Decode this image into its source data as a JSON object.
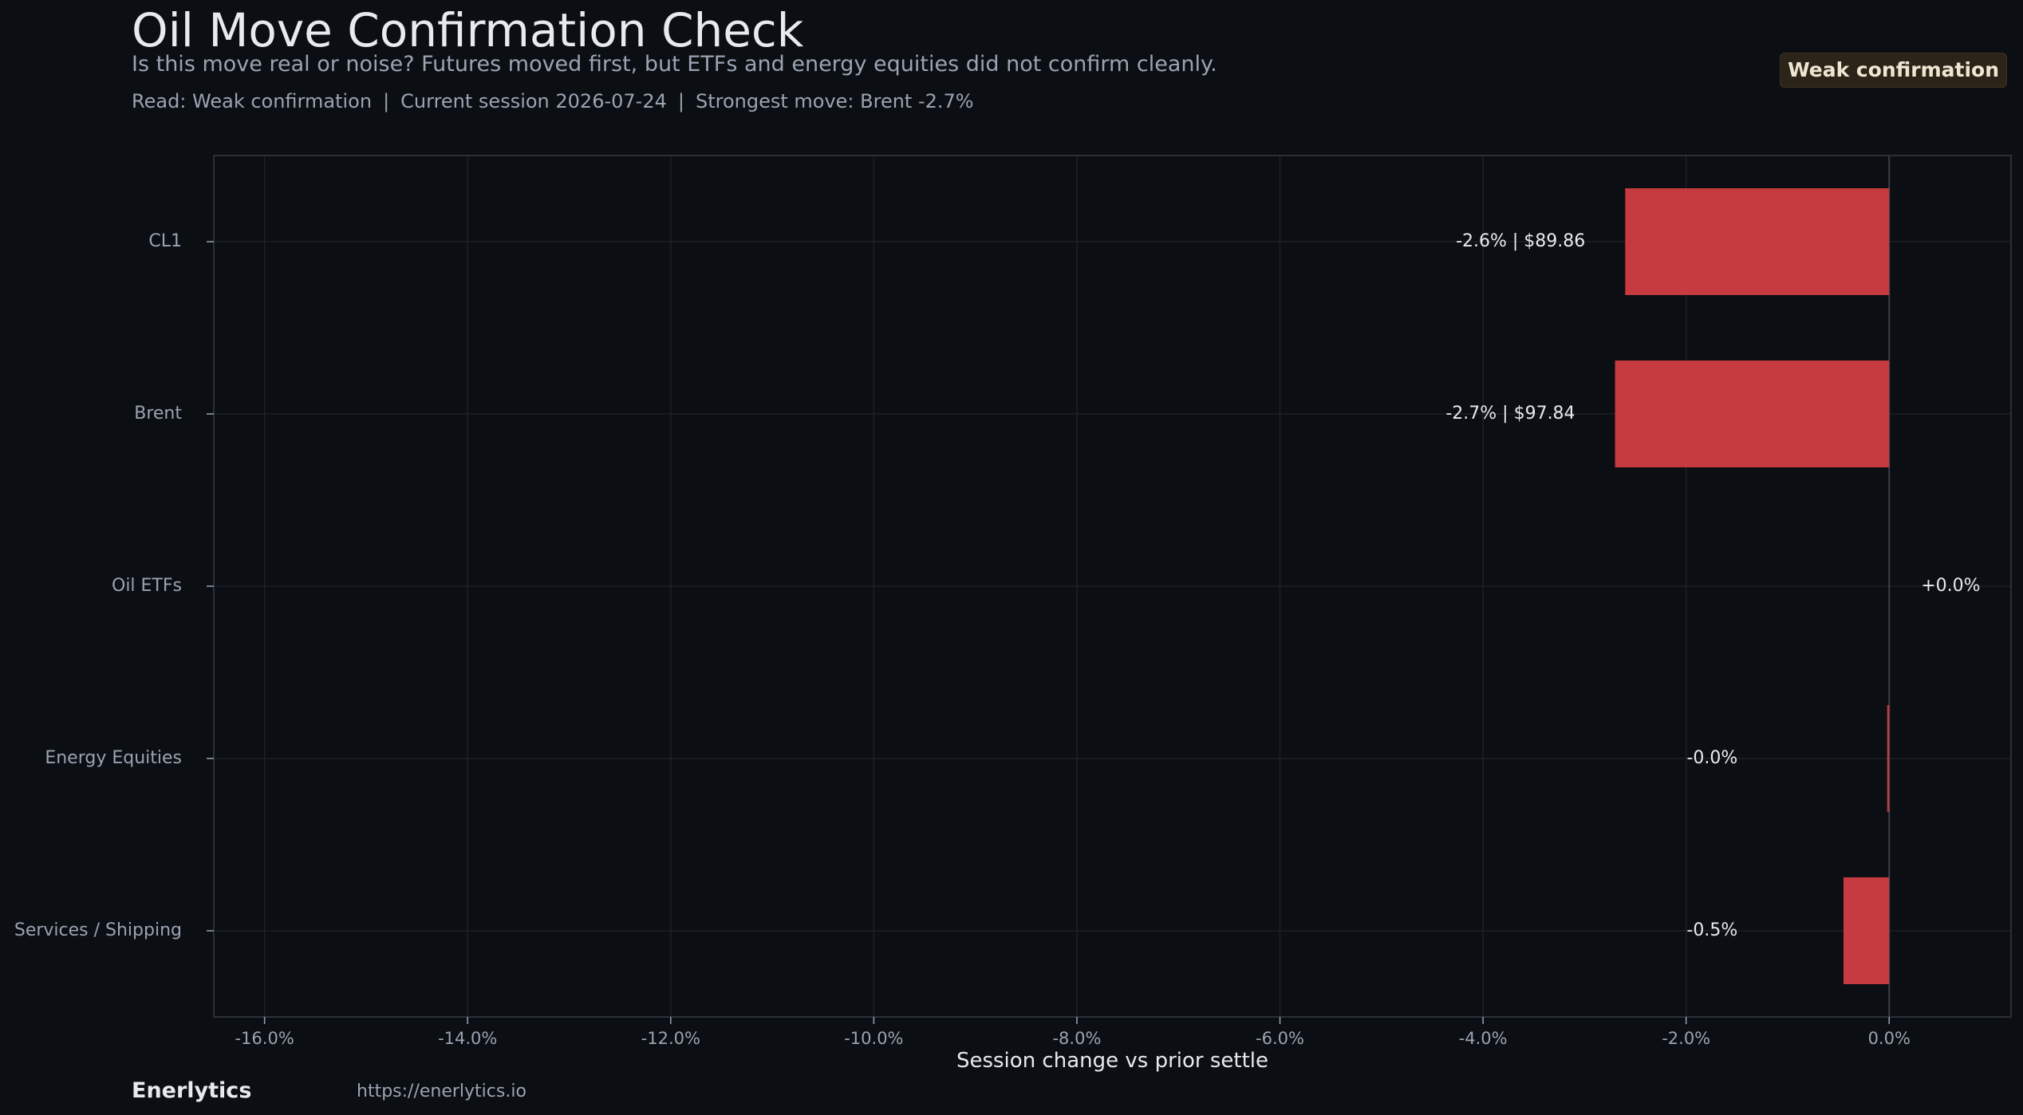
{
  "header": {
    "title": "Oil Move Confirmation Check",
    "subtitle": "Is this move real or noise? Futures moved first, but ETFs and energy equities did not confirm cleanly.",
    "read_label": "Read: Weak confirmation",
    "session_label": "Current session 2026-07-24",
    "strongest_label": "Strongest move: Brent -2.7%",
    "separator": "|",
    "badge": "Weak confirmation"
  },
  "footer": {
    "brand": "Enerlytics",
    "url": "https://enerlytics.io"
  },
  "colors": {
    "background": "#0b0e13",
    "plot_border": "#2a2f38",
    "grid": "#1c2028",
    "zero_line": "#3a3f48",
    "bar_negative": "#c53b3f",
    "text_primary": "#e8eaed",
    "text_muted": "#9aa4b2",
    "badge_bg": "#2c2418"
  },
  "chart_data": {
    "type": "bar",
    "orientation": "horizontal",
    "categories": [
      "CL1",
      "Brent",
      "Oil ETFs",
      "Energy Equities",
      "Services / Shipping"
    ],
    "values": [
      -2.6,
      -2.7,
      0.0,
      -0.02,
      -0.45
    ],
    "data_labels": [
      "-2.6% | $89.86",
      "-2.7% | $97.84",
      "+0.0%",
      "-0.0%",
      "-0.5%"
    ],
    "xlabel": "Session change vs prior settle",
    "ylabel": "",
    "xlim": [
      -16.5,
      1.2
    ],
    "xticks": [
      -16,
      -14,
      -12,
      -10,
      -8,
      -6,
      -4,
      -2,
      0
    ],
    "xtick_labels": [
      "-16.0%",
      "-14.0%",
      "-12.0%",
      "-10.0%",
      "-8.0%",
      "-6.0%",
      "-4.0%",
      "-2.0%",
      "0.0%"
    ],
    "grid": true,
    "legend": "none"
  }
}
